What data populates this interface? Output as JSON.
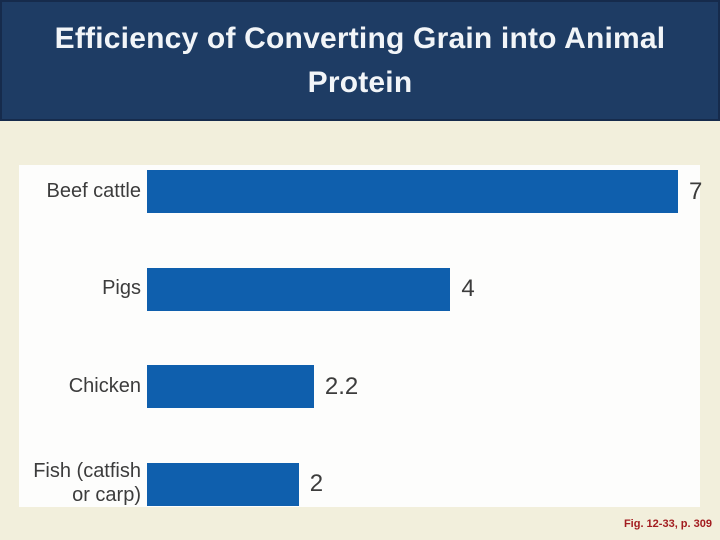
{
  "header": {
    "title": "Efficiency of Converting Grain into Animal Protein"
  },
  "caption": "Fig. 12-33, p. 309",
  "colors": {
    "banner": "#1e3c64",
    "background": "#f2efdc",
    "panel": "#fdfdfc",
    "bar": "#0f5fad",
    "label_text": "#3c3c3c",
    "caption_text": "#a21c1f",
    "title_text": "#f2f5f8"
  },
  "chart_data": {
    "type": "bar",
    "orientation": "horizontal",
    "title": "Efficiency of Converting Grain into Animal Protein",
    "categories": [
      "Beef cattle",
      "Pigs",
      "Chicken",
      "Fish (catfish\nor carp)"
    ],
    "values": [
      7,
      4,
      2.2,
      2
    ],
    "value_labels": [
      "7",
      "4",
      "2.2",
      "2"
    ],
    "xlabel": "",
    "ylabel": "",
    "xlim": [
      0,
      7
    ],
    "grid": false,
    "legend": false,
    "bar_color": "#0f5fad",
    "value_label_position": "end-of-bar"
  }
}
